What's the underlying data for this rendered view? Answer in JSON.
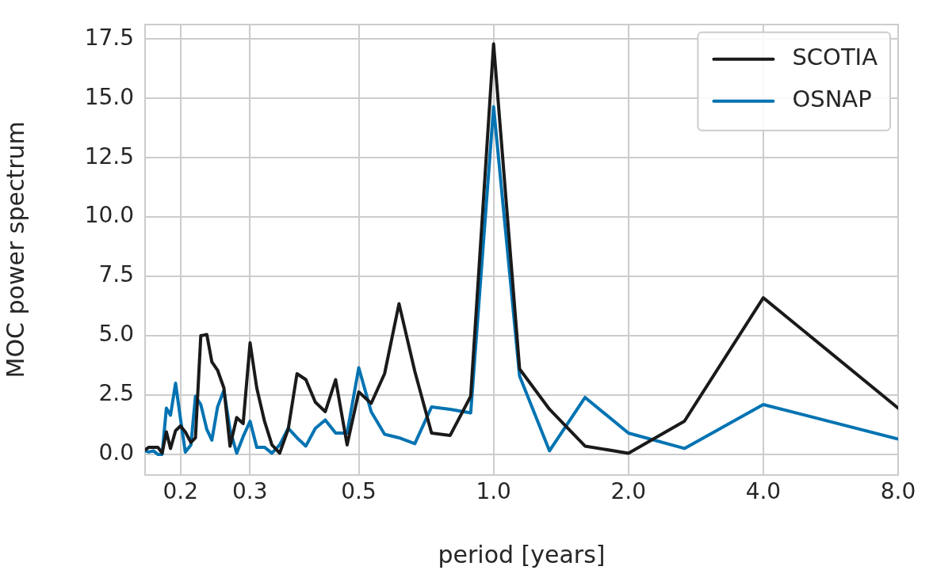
{
  "chart_data": {
    "type": "line",
    "xlabel": "period [years]",
    "ylabel": "MOC power spectrum",
    "x": [
      8,
      4,
      2.667,
      2,
      1.6,
      1.333,
      1.143,
      1,
      0.889,
      0.8,
      0.727,
      0.667,
      0.615,
      0.571,
      0.533,
      0.5,
      0.471,
      0.444,
      0.421,
      0.4,
      0.381,
      0.364,
      0.348,
      0.333,
      0.32,
      0.308,
      0.296,
      0.286,
      0.276,
      0.267,
      0.258,
      0.25,
      0.242,
      0.235,
      0.229,
      0.222,
      0.216,
      0.211,
      0.205,
      0.2,
      0.195,
      0.19,
      0.186,
      0.182,
      0.178,
      0.174,
      0.17,
      0.167
    ],
    "series": [
      {
        "name": "SCOTIA",
        "color": "#1a1a1a",
        "values": [
          1.95,
          6.6,
          1.4,
          0.05,
          0.35,
          1.9,
          3.6,
          17.3,
          2.45,
          0.8,
          0.9,
          3.5,
          6.35,
          3.4,
          2.15,
          2.63,
          0.4,
          3.15,
          1.8,
          2.2,
          3.15,
          3.4,
          1.07,
          0.05,
          0.4,
          1.4,
          2.8,
          4.7,
          1.3,
          1.55,
          0.35,
          2.8,
          3.55,
          3.9,
          5.05,
          5.0,
          0.7,
          0.5,
          0.95,
          1.2,
          1.0,
          0.25,
          0.95,
          0.05,
          0.3,
          0.3,
          0.3,
          0.2
        ]
      },
      {
        "name": "OSNAP",
        "color": "#0173b2",
        "values": [
          0.65,
          2.1,
          0.25,
          0.9,
          2.4,
          0.15,
          3.3,
          14.65,
          1.75,
          1.9,
          2.0,
          0.45,
          0.7,
          0.85,
          1.8,
          3.65,
          0.9,
          0.9,
          1.45,
          1.1,
          0.35,
          0.7,
          1.1,
          0.4,
          0.05,
          0.3,
          0.3,
          1.4,
          0.75,
          0.05,
          1.05,
          2.7,
          2.0,
          0.6,
          1.05,
          2.1,
          2.45,
          0.4,
          0.1,
          1.5,
          3.0,
          1.65,
          1.95,
          0.0,
          0.0,
          0.15,
          0.1,
          0.15
        ]
      }
    ],
    "log": "x",
    "xlim": [
      0.1667,
      8
    ],
    "xticks": [
      0.2,
      {
        "value": 0.2857,
        "label": "0.3"
      },
      0.5,
      {
        "value": 1,
        "label": "1.0"
      },
      {
        "value": 2,
        "label": "2.0"
      },
      {
        "value": 4,
        "label": "4.0"
      },
      {
        "value": 8,
        "label": "8.0"
      }
    ],
    "ylim": [
      -0.87,
      18.12
    ],
    "yticks": [
      {
        "value": 0,
        "label": "0.0"
      },
      2.5,
      {
        "value": 5,
        "label": "5.0"
      },
      7.5,
      {
        "value": 10,
        "label": "10.0"
      },
      12.5,
      {
        "value": 15,
        "label": "15.0"
      },
      17.5
    ],
    "grid": true,
    "legend": "top right",
    "marker": "none",
    "line_style": "solid"
  }
}
